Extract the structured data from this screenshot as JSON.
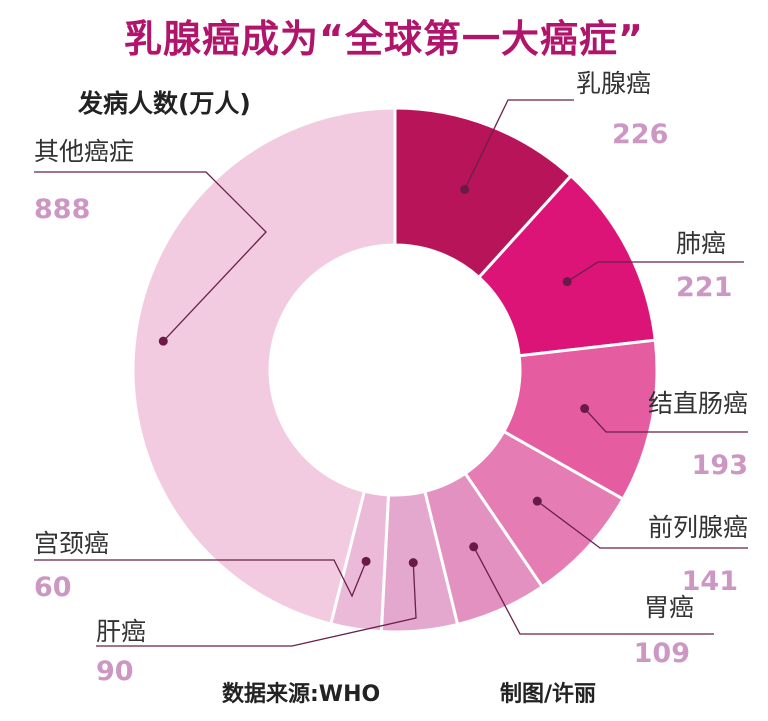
{
  "title": "乳腺癌成为“全球第一大癌症”",
  "subtitle": "发病人数(万人)",
  "footer": {
    "source": "数据来源:WHO",
    "credit": "制图/许丽"
  },
  "chart_data": {
    "type": "pie",
    "title": "乳腺癌成为“全球第一大癌症”",
    "unit": "万人",
    "categories": [
      "乳腺癌",
      "肺癌",
      "结直肠癌",
      "前列腺癌",
      "胃癌",
      "肝癌",
      "宫颈癌",
      "其他癌症"
    ],
    "values": [
      226,
      221,
      193,
      141,
      109,
      90,
      60,
      888
    ],
    "colors": [
      "#b8145a",
      "#dc1477",
      "#e55da0",
      "#e57cb4",
      "#e291c0",
      "#e4a8cf",
      "#ebbad9",
      "#f2cbe0"
    ]
  }
}
